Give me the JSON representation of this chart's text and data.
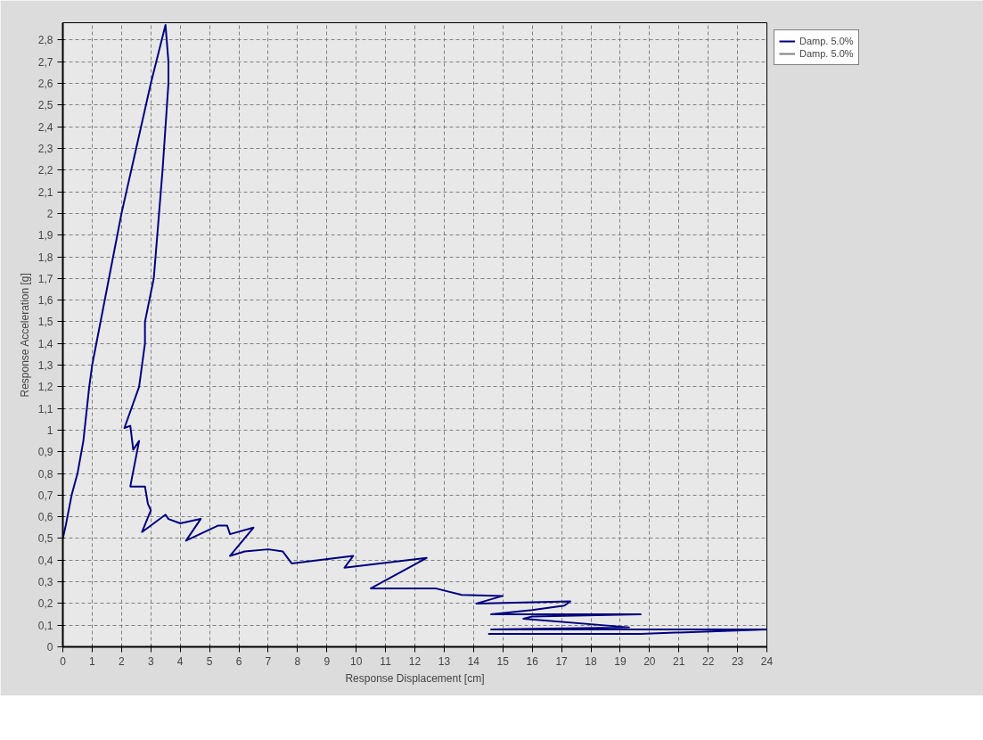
{
  "chart_data": {
    "type": "line",
    "xlabel": "Response Displacement [cm]",
    "ylabel": "Response Acceleration [g]",
    "xlim": [
      0,
      24
    ],
    "ylim": [
      0,
      2.88
    ],
    "xticks": [
      0,
      1,
      2,
      3,
      4,
      5,
      6,
      7,
      8,
      9,
      10,
      11,
      12,
      13,
      14,
      15,
      16,
      17,
      18,
      19,
      20,
      21,
      22,
      23,
      24
    ],
    "yticks": [
      0,
      {
        "value": 0.1,
        "label": "0,1"
      },
      {
        "value": 0.2,
        "label": "0,2"
      },
      {
        "value": 0.3,
        "label": "0,3"
      },
      {
        "value": 0.4,
        "label": "0,4"
      },
      {
        "value": 0.5,
        "label": "0,5"
      },
      {
        "value": 0.6,
        "label": "0,6"
      },
      {
        "value": 0.7,
        "label": "0,7"
      },
      {
        "value": 0.8,
        "label": "0,8"
      },
      {
        "value": 0.9,
        "label": "0,9"
      },
      1,
      {
        "value": 1.1,
        "label": "1,1"
      },
      {
        "value": 1.2,
        "label": "1,2"
      },
      {
        "value": 1.3,
        "label": "1,3"
      },
      {
        "value": 1.4,
        "label": "1,4"
      },
      {
        "value": 1.5,
        "label": "1,5"
      },
      {
        "value": 1.6,
        "label": "1,6"
      },
      {
        "value": 1.7,
        "label": "1,7"
      },
      {
        "value": 1.8,
        "label": "1,8"
      },
      {
        "value": 1.9,
        "label": "1,9"
      },
      2,
      {
        "value": 2.1,
        "label": "2,1"
      },
      {
        "value": 2.2,
        "label": "2,2"
      },
      {
        "value": 2.3,
        "label": "2,3"
      },
      {
        "value": 2.4,
        "label": "2,4"
      },
      {
        "value": 2.5,
        "label": "2,5"
      },
      {
        "value": 2.6,
        "label": "2,6"
      },
      {
        "value": 2.7,
        "label": "2,7"
      },
      {
        "value": 2.8,
        "label": "2,8"
      }
    ],
    "grid": true,
    "legend": "top right",
    "line_style": "solid",
    "series": [
      {
        "name": "Damp. 5.0%",
        "color": "#000080",
        "x": [
          0,
          0.1,
          0.3,
          0.5,
          0.7,
          0.9,
          1.0,
          1.5,
          2.0,
          2.5,
          3.0,
          3.5,
          3.6,
          3.6,
          3.4,
          3.1,
          2.8,
          2.8,
          2.6,
          2.1,
          2.3,
          2.4,
          2.6,
          2.3,
          2.8,
          2.9,
          3.0,
          2.7,
          3.5,
          3.6,
          4.0,
          4.7,
          4.2,
          5.3,
          5.6,
          5.7,
          6.5,
          5.7,
          6.2,
          7.0,
          7.5,
          7.8,
          9.9,
          9.6,
          12.4,
          10.5,
          12.7,
          13.6,
          15.0,
          14.1,
          17.3,
          17.1,
          16.0,
          14.6,
          19.7,
          16.0,
          15.7,
          19.3,
          14.6,
          24.0,
          19.7,
          14.5
        ],
        "values": [
          0.5,
          0.56,
          0.7,
          0.8,
          0.95,
          1.2,
          1.3,
          1.65,
          2.0,
          2.3,
          2.6,
          2.87,
          2.7,
          2.6,
          2.2,
          1.7,
          1.5,
          1.4,
          1.2,
          1.01,
          1.02,
          0.91,
          0.95,
          0.74,
          0.74,
          0.66,
          0.63,
          0.53,
          0.61,
          0.59,
          0.57,
          0.59,
          0.49,
          0.56,
          0.56,
          0.52,
          0.55,
          0.42,
          0.44,
          0.45,
          0.44,
          0.385,
          0.42,
          0.365,
          0.41,
          0.27,
          0.27,
          0.24,
          0.235,
          0.2,
          0.21,
          0.19,
          0.17,
          0.15,
          0.15,
          0.14,
          0.13,
          0.09,
          0.08,
          0.08,
          0.06,
          0.06
        ]
      },
      {
        "name": "Damp. 5.0%",
        "color": "#808080"
      }
    ]
  }
}
